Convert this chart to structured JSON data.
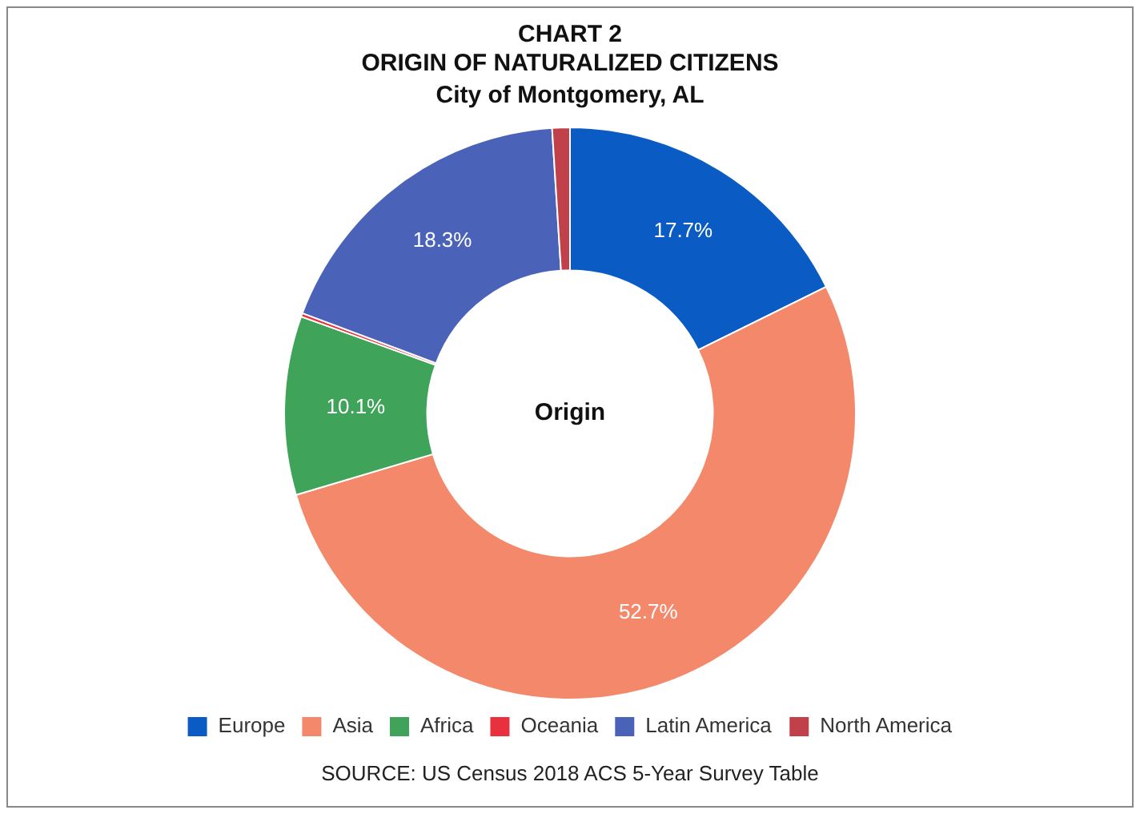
{
  "chart_data": {
    "type": "donut",
    "title": "CHART 2\nORIGIN OF NATURALIZED CITIZENS",
    "subtitle": "City of Montgomery, AL",
    "categories": [
      "Europe",
      "Asia",
      "Africa",
      "Oceania",
      "Latin America",
      "North America"
    ],
    "values": [
      17.7,
      52.7,
      10.1,
      0.2,
      18.3,
      1.0
    ],
    "value_labels": [
      "17.7%",
      "52.7%",
      "10.1%",
      null,
      "18.3%",
      null
    ],
    "colors": [
      "#0a5cc4",
      "#f4886a",
      "#3fa35a",
      "#e8303e",
      "#4a62b8",
      "#c0414a"
    ],
    "legend": "bottom",
    "annotations": [
      "Origin",
      "SOURCE: US Census 2018 ACS 5-Year Survey Table"
    ]
  }
}
